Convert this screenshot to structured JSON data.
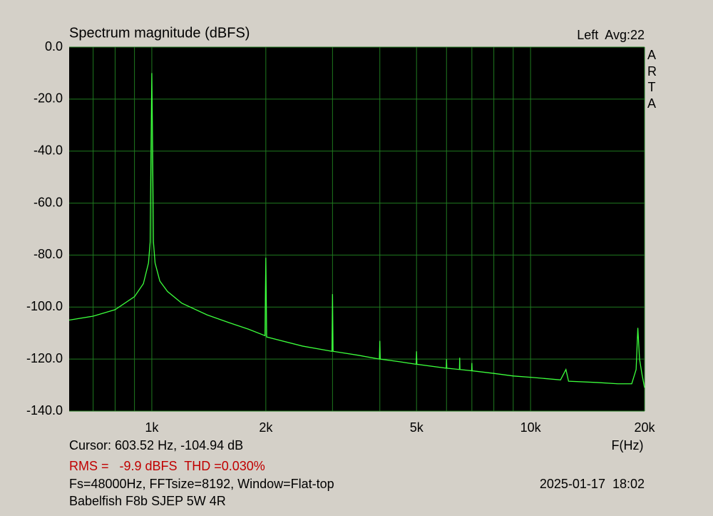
{
  "chart_data": {
    "type": "line",
    "title": "Spectrum magnitude (dBFS)",
    "subtitle": "Left  Avg:22",
    "side_label": "ARTA",
    "x_label": "F(Hz)",
    "x_scale": "log",
    "grid": true,
    "color": "#3cff3c",
    "x": [
      605,
      700,
      800,
      900,
      950,
      980,
      990,
      995,
      1000,
      1005,
      1010,
      1020,
      1050,
      1100,
      1200,
      1400,
      1600,
      1800,
      1990,
      1995,
      2000,
      2005,
      2010,
      2500,
      2990,
      3000,
      3010,
      3500,
      3990,
      4000,
      4010,
      4500,
      4990,
      5000,
      5010,
      5990,
      6000,
      6010,
      6490,
      6500,
      6510,
      6990,
      7000,
      7010,
      8000,
      9000,
      10000,
      12000,
      12400,
      12600,
      15000,
      17000,
      18500,
      19000,
      19200,
      19400,
      19700,
      20000
    ],
    "values": [
      -105,
      -103.5,
      -101,
      -96,
      -91,
      -83,
      -75,
      -40,
      -10,
      -40,
      -75,
      -83,
      -90,
      -94,
      -98.5,
      -103,
      -106,
      -108.5,
      -111,
      -95,
      -81,
      -95,
      -111.5,
      -115,
      -117,
      -95,
      -117,
      -118.5,
      -120,
      -113,
      -120,
      -121,
      -122,
      -117,
      -122,
      -123.5,
      -120,
      -123.5,
      -124,
      -119.5,
      -124,
      -124.5,
      -121.5,
      -124.5,
      -125.5,
      -126.5,
      -127,
      -128,
      -124,
      -128.5,
      -129,
      -129.5,
      -129.5,
      -124,
      -108,
      -120,
      -126,
      -131
    ],
    "xlim": [
      605,
      20000
    ],
    "xticks": [
      {
        "value": 1000,
        "label": "1k"
      },
      {
        "value": 2000,
        "label": "2k"
      },
      {
        "value": 5000,
        "label": "5k"
      },
      {
        "value": 10000,
        "label": "10k"
      },
      {
        "value": 20000,
        "label": "20k"
      }
    ],
    "x_minor_grid": [
      700,
      800,
      900,
      3000,
      4000,
      6000,
      7000,
      8000,
      9000
    ],
    "ylim": [
      -140,
      0
    ],
    "yticks": [
      {
        "value": 0,
        "label": "0.0"
      },
      {
        "value": -20,
        "label": "-20.0"
      },
      {
        "value": -40,
        "label": "-40.0"
      },
      {
        "value": -60,
        "label": "-60.0"
      },
      {
        "value": -80,
        "label": "-80.0"
      },
      {
        "value": -100,
        "label": "-100.0"
      },
      {
        "value": -120,
        "label": "-120.0"
      },
      {
        "value": -140,
        "label": "-140.0"
      }
    ],
    "annotations": [
      {
        "text": "Cursor: 603.52 Hz, -104.94 dB",
        "color": "#000000"
      },
      {
        "text": "RMS =   -9.9 dBFS  THD =0.030%",
        "color": "#c00000"
      },
      {
        "text": "Fs=48000Hz, FFTsize=8192, Window=Flat-top",
        "color": "#000000"
      },
      {
        "text": "2025-01-17  18:02",
        "color": "#000000"
      },
      {
        "text": "Babelfish F8b SJEP 5W 4R",
        "color": "#000000"
      }
    ]
  }
}
